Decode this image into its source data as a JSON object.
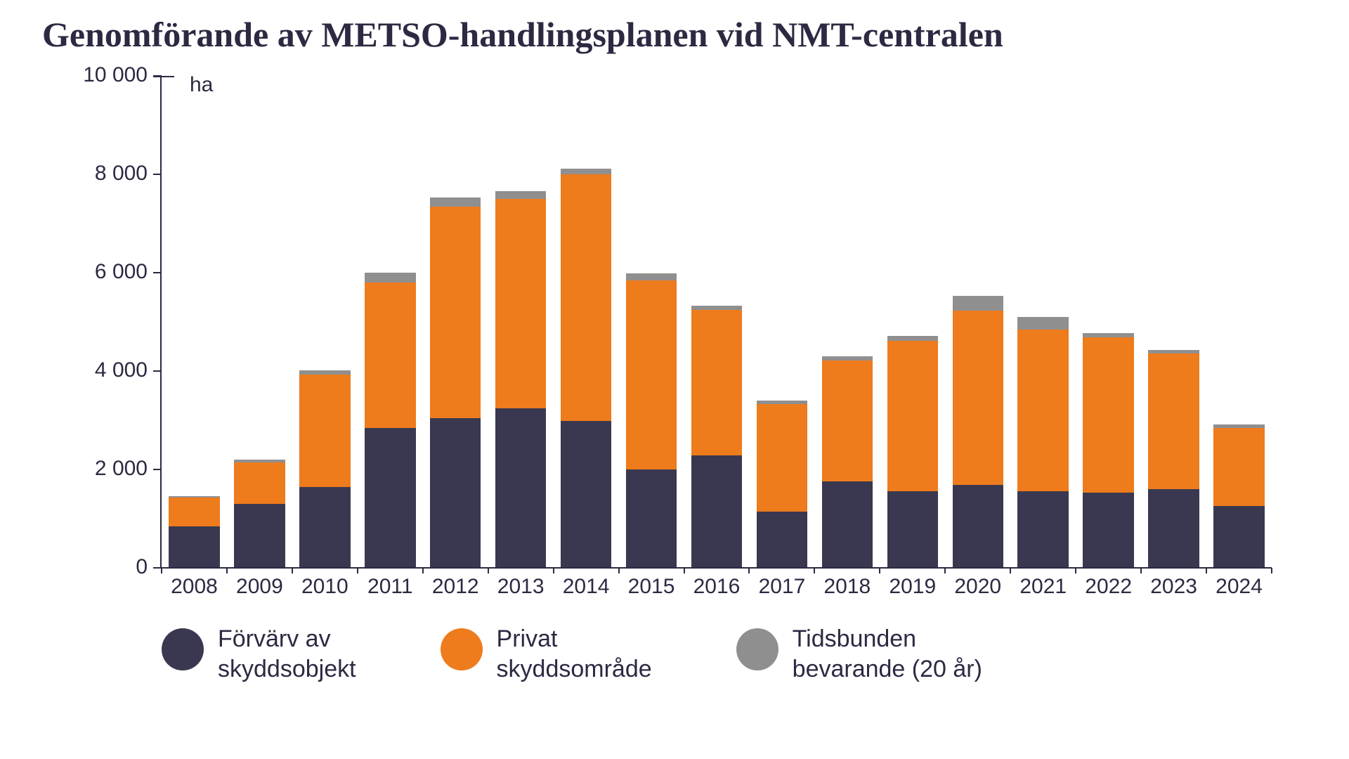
{
  "chart": {
    "type": "stacked-bar",
    "title": "Genomförande av METSO-handlingsplanen vid NMT-centralen",
    "title_fontsize": 50,
    "title_color": "#2c2a42",
    "background_color": "#ffffff",
    "unit_label": "ha",
    "axis_color": "#2c2a42",
    "label_fontsize": 30,
    "tick_fontsize": 30,
    "y": {
      "min": 0,
      "max": 10000,
      "ticks": [
        0,
        2000,
        4000,
        6000,
        8000,
        10000
      ],
      "tick_labels": [
        "0",
        "2 000",
        "4 000",
        "6 000",
        "8 000",
        "10 000"
      ]
    },
    "categories": [
      "2008",
      "2009",
      "2010",
      "2011",
      "2012",
      "2013",
      "2014",
      "2015",
      "2016",
      "2017",
      "2018",
      "2019",
      "2020",
      "2021",
      "2022",
      "2023",
      "2024"
    ],
    "series": [
      {
        "key": "forvarv",
        "label_line1": "Förvärv av",
        "label_line2": "skyddsobjekt",
        "color": "#3a3850"
      },
      {
        "key": "privat",
        "label_line1": "Privat",
        "label_line2": "skyddsområde",
        "color": "#ee7b1c"
      },
      {
        "key": "tids",
        "label_line1": "Tidsbunden",
        "label_line2": "bevarande (20 år)",
        "color": "#8f8f8f"
      }
    ],
    "data": [
      {
        "year": "2008",
        "forvarv": 850,
        "privat": 580,
        "tids": 30
      },
      {
        "year": "2009",
        "forvarv": 1300,
        "privat": 850,
        "tids": 50
      },
      {
        "year": "2010",
        "forvarv": 1650,
        "privat": 2280,
        "tids": 90
      },
      {
        "year": "2011",
        "forvarv": 2850,
        "privat": 2950,
        "tids": 200
      },
      {
        "year": "2012",
        "forvarv": 3050,
        "privat": 4300,
        "tids": 180
      },
      {
        "year": "2013",
        "forvarv": 3250,
        "privat": 4250,
        "tids": 160
      },
      {
        "year": "2014",
        "forvarv": 2980,
        "privat": 5020,
        "tids": 120
      },
      {
        "year": "2015",
        "forvarv": 2000,
        "privat": 3850,
        "tids": 130
      },
      {
        "year": "2016",
        "forvarv": 2280,
        "privat": 2970,
        "tids": 80
      },
      {
        "year": "2017",
        "forvarv": 1150,
        "privat": 2180,
        "tids": 70
      },
      {
        "year": "2018",
        "forvarv": 1760,
        "privat": 2460,
        "tids": 80
      },
      {
        "year": "2019",
        "forvarv": 1560,
        "privat": 3060,
        "tids": 90
      },
      {
        "year": "2020",
        "forvarv": 1680,
        "privat": 3550,
        "tids": 300
      },
      {
        "year": "2021",
        "forvarv": 1560,
        "privat": 3280,
        "tids": 260
      },
      {
        "year": "2022",
        "forvarv": 1530,
        "privat": 3150,
        "tids": 90
      },
      {
        "year": "2023",
        "forvarv": 1600,
        "privat": 2760,
        "tids": 70
      },
      {
        "year": "2024",
        "forvarv": 1260,
        "privat": 1590,
        "tids": 60
      }
    ],
    "bar_width_ratio": 0.78
  }
}
